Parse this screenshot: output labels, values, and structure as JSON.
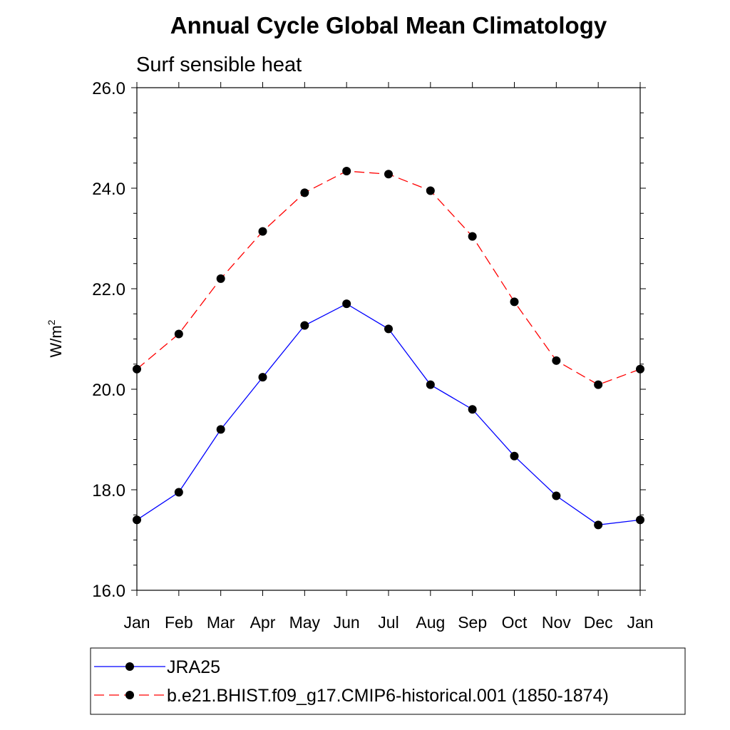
{
  "chart_data": {
    "type": "line",
    "title": "Annual Cycle Global Mean Climatology",
    "subtitle": "Surf sensible heat",
    "ylabel": "W/m",
    "ylabel_superscript": "2",
    "ylim": [
      16.0,
      26.0
    ],
    "y_ticks": [
      "16.0",
      "18.0",
      "20.0",
      "22.0",
      "24.0",
      "26.0"
    ],
    "categories": [
      "Jan",
      "Feb",
      "Mar",
      "Apr",
      "May",
      "Jun",
      "Jul",
      "Aug",
      "Sep",
      "Oct",
      "Nov",
      "Dec",
      "Jan"
    ],
    "grid": false,
    "legend_position": "bottom",
    "series": [
      {
        "name": "JRA25",
        "color": "#0000ff",
        "dash": "solid",
        "values": [
          17.4,
          17.95,
          19.2,
          20.24,
          21.27,
          21.7,
          21.2,
          20.09,
          19.6,
          18.67,
          17.88,
          17.3,
          17.4
        ]
      },
      {
        "name": "b.e21.BHIST.f09_g17.CMIP6-historical.001 (1850-1874)",
        "color": "#ff0000",
        "dash": "dashed",
        "values": [
          20.4,
          21.1,
          22.2,
          23.14,
          23.91,
          24.34,
          24.28,
          23.95,
          23.04,
          21.74,
          20.57,
          20.09,
          20.4
        ]
      }
    ]
  }
}
